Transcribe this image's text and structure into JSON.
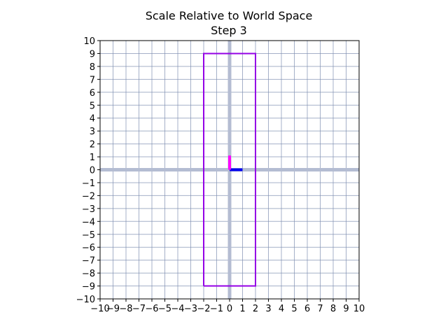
{
  "chart_data": {
    "type": "line",
    "title": "Scale Relative to World Space",
    "subtitle": "Step 3",
    "xlabel": "",
    "ylabel": "",
    "xlim": [
      -10,
      10
    ],
    "ylim": [
      -10,
      10
    ],
    "xticks": [
      -10,
      -9,
      -8,
      -7,
      -6,
      -5,
      -4,
      -3,
      -2,
      -1,
      0,
      1,
      2,
      3,
      4,
      5,
      6,
      7,
      8,
      9,
      10
    ],
    "yticks": [
      -10,
      -9,
      -8,
      -7,
      -6,
      -5,
      -4,
      -3,
      -2,
      -1,
      0,
      1,
      2,
      3,
      4,
      5,
      6,
      7,
      8,
      9,
      10
    ],
    "xtick_labels": [
      "−10",
      "−9",
      "−8",
      "−7",
      "−6",
      "−5",
      "−4",
      "−3",
      "−2",
      "−1",
      "0",
      "1",
      "2",
      "3",
      "4",
      "5",
      "6",
      "7",
      "8",
      "9",
      "10"
    ],
    "ytick_labels": [
      "−10",
      "−9",
      "−8",
      "−7",
      "−6",
      "−5",
      "−4",
      "−3",
      "−2",
      "−1",
      "0",
      "1",
      "2",
      "3",
      "4",
      "5",
      "6",
      "7",
      "8",
      "9",
      "10"
    ],
    "grid": true,
    "grid_color": "#7f8fb0",
    "axis_line_color": "#b4bcd2",
    "series": [
      {
        "kind": "rectangle",
        "color": "#9400e6",
        "points": [
          [
            -2,
            -9
          ],
          [
            2,
            -9
          ],
          [
            2,
            9
          ],
          [
            -2,
            9
          ],
          [
            -2,
            -9
          ]
        ]
      },
      {
        "kind": "x-axis-indicator",
        "color": "#0000ee",
        "points": [
          [
            0,
            0
          ],
          [
            1,
            0
          ]
        ]
      },
      {
        "kind": "y-axis-indicator",
        "color": "#ff00ff",
        "points": [
          [
            0,
            0
          ],
          [
            0,
            1.1
          ]
        ]
      }
    ]
  }
}
